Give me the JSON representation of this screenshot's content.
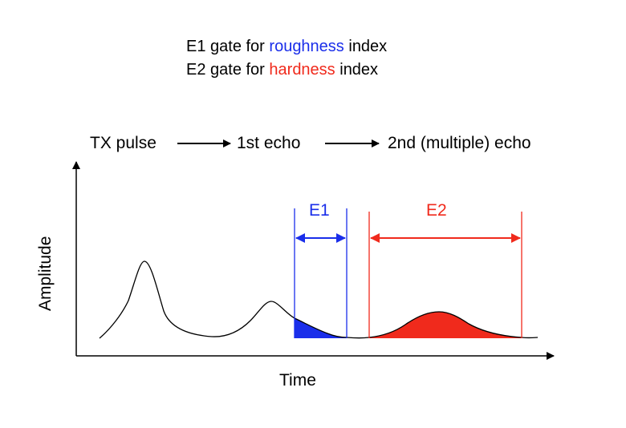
{
  "title": {
    "line1": {
      "prefix": "E1 gate for ",
      "highlight": "roughness",
      "suffix": " index",
      "highlight_color": "#1a2eea"
    },
    "line2": {
      "prefix": "E2 gate for ",
      "highlight": "hardness",
      "suffix": " index",
      "highlight_color": "#f02a1c"
    }
  },
  "sequence": {
    "step1": "TX pulse",
    "step2": "1st echo",
    "step3": "2nd (multiple) echo"
  },
  "axes": {
    "x_label": "Time",
    "y_label": "Amplitude"
  },
  "gates": {
    "e1": {
      "label": "E1",
      "color": "#1a2eea"
    },
    "e2": {
      "label": "E2",
      "color": "#f02a1c"
    }
  },
  "colors": {
    "text": "#000000",
    "curve": "#000000"
  }
}
